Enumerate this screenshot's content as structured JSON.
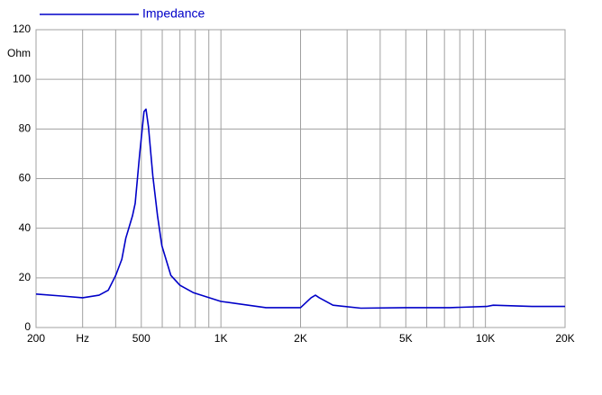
{
  "chart_data": {
    "type": "line",
    "y_label": "Ohm",
    "xscale": "log",
    "grid": true,
    "x": [
      200,
      250,
      300,
      346,
      375,
      400,
      422,
      437,
      463,
      474,
      493,
      512,
      521,
      532,
      553,
      576,
      598,
      647,
      700,
      789,
      1000,
      1480,
      2000,
      2192,
      2277,
      2355,
      2653,
      3380,
      4979,
      7340,
      10100,
      10700,
      15000,
      20000
    ],
    "series": [
      {
        "name": "Impedance",
        "color": "#0000c8",
        "values": [
          13.5,
          12.7,
          12,
          13,
          15,
          21,
          27.5,
          36,
          45,
          50,
          70,
          87,
          88,
          81,
          61,
          45,
          33,
          21,
          17,
          14,
          10.5,
          8,
          8,
          12,
          13,
          12,
          9,
          7.8,
          8,
          8,
          8.5,
          9,
          8.5,
          8.5
        ]
      }
    ],
    "xlim": [
      200,
      20000
    ],
    "xticks": [
      200,
      {
        "value": 300,
        "label": "Hz"
      },
      {
        "value": 400,
        "label": null
      },
      500,
      {
        "value": 600,
        "label": null
      },
      {
        "value": 700,
        "label": null
      },
      {
        "value": 800,
        "label": null
      },
      {
        "value": 900,
        "label": null
      },
      {
        "value": 1000,
        "label": "1K"
      },
      {
        "value": 2000,
        "label": "2K"
      },
      {
        "value": 3000,
        "label": null
      },
      {
        "value": 4000,
        "label": null
      },
      {
        "value": 5000,
        "label": "5K"
      },
      {
        "value": 6000,
        "label": null
      },
      {
        "value": 7000,
        "label": null
      },
      {
        "value": 8000,
        "label": null
      },
      {
        "value": 9000,
        "label": null
      },
      {
        "value": 10000,
        "label": "10K"
      },
      {
        "value": 20000,
        "label": "20K"
      }
    ],
    "ylim": [
      0,
      120
    ],
    "yticks": [
      0,
      20,
      40,
      60,
      80,
      100,
      120
    ]
  }
}
